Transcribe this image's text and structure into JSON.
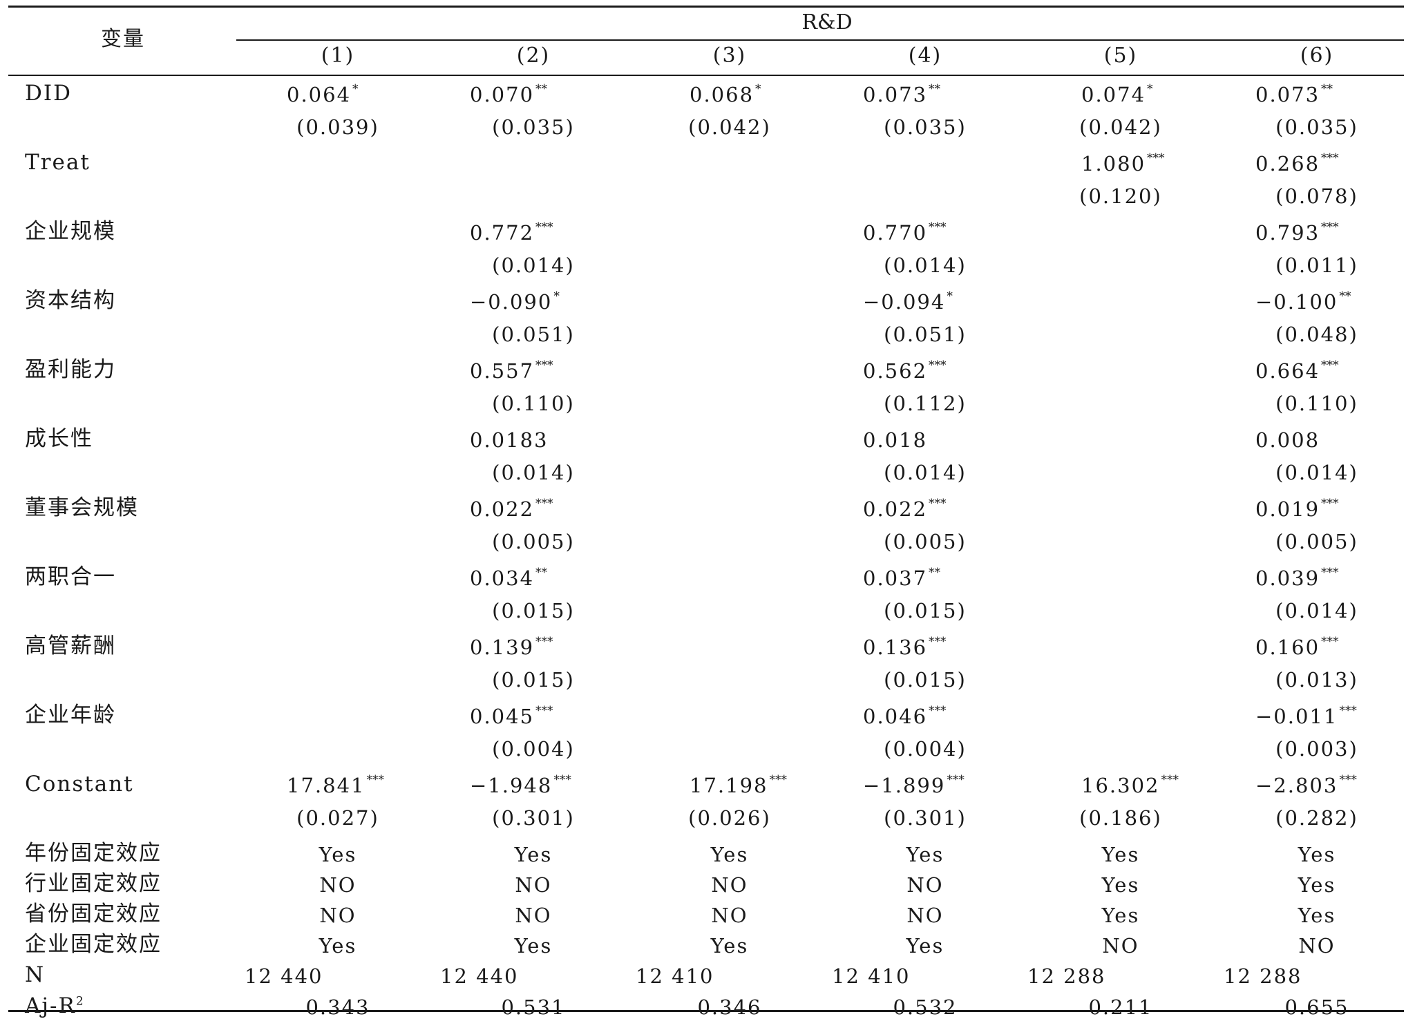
{
  "header": {
    "var_label": "变量",
    "group_label": "R&D",
    "columns": [
      "(1)",
      "(2)",
      "(3)",
      "(4)",
      "(5)",
      "(6)"
    ]
  },
  "rows": [
    {
      "label": "DID",
      "coef": [
        "0.064",
        "0.070",
        "0.068",
        "0.073",
        "0.074",
        "0.073"
      ],
      "stars": [
        "*",
        "**",
        "*",
        "**",
        "*",
        "**"
      ],
      "se": [
        "(0.039)",
        "(0.035)",
        "(0.042)",
        "(0.035)",
        "(0.042)",
        "(0.035)"
      ]
    },
    {
      "label": "Treat",
      "coef": [
        "",
        "",
        "",
        "",
        "1.080",
        "0.268"
      ],
      "stars": [
        "",
        "",
        "",
        "",
        "***",
        "***"
      ],
      "se": [
        "",
        "",
        "",
        "",
        "(0.120)",
        "(0.078)"
      ]
    },
    {
      "label": "企业规模",
      "coef": [
        "",
        "0.772",
        "",
        "0.770",
        "",
        "0.793"
      ],
      "stars": [
        "",
        "***",
        "",
        "***",
        "",
        "***"
      ],
      "se": [
        "",
        "(0.014)",
        "",
        "(0.014)",
        "",
        "(0.011)"
      ]
    },
    {
      "label": "资本结构",
      "coef": [
        "",
        "−0.090",
        "",
        "−0.094",
        "",
        "−0.100"
      ],
      "stars": [
        "",
        "*",
        "",
        "*",
        "",
        "**"
      ],
      "se": [
        "",
        "(0.051)",
        "",
        "(0.051)",
        "",
        "(0.048)"
      ]
    },
    {
      "label": "盈利能力",
      "coef": [
        "",
        "0.557",
        "",
        "0.562",
        "",
        "0.664"
      ],
      "stars": [
        "",
        "***",
        "",
        "***",
        "",
        "***"
      ],
      "se": [
        "",
        "(0.110)",
        "",
        "(0.112)",
        "",
        "(0.110)"
      ]
    },
    {
      "label": "成长性",
      "coef": [
        "",
        "0.0183",
        "",
        "0.018",
        "",
        "0.008"
      ],
      "stars": [
        "",
        "",
        "",
        "",
        "",
        ""
      ],
      "se": [
        "",
        "(0.014)",
        "",
        "(0.014)",
        "",
        "(0.014)"
      ]
    },
    {
      "label": "董事会规模",
      "coef": [
        "",
        "0.022",
        "",
        "0.022",
        "",
        "0.019"
      ],
      "stars": [
        "",
        "***",
        "",
        "***",
        "",
        "***"
      ],
      "se": [
        "",
        "(0.005)",
        "",
        "(0.005)",
        "",
        "(0.005)"
      ]
    },
    {
      "label": "两职合一",
      "coef": [
        "",
        "0.034",
        "",
        "0.037",
        "",
        "0.039"
      ],
      "stars": [
        "",
        "**",
        "",
        "**",
        "",
        "***"
      ],
      "se": [
        "",
        "(0.015)",
        "",
        "(0.015)",
        "",
        "(0.014)"
      ]
    },
    {
      "label": "高管薪酬",
      "coef": [
        "",
        "0.139",
        "",
        "0.136",
        "",
        "0.160"
      ],
      "stars": [
        "",
        "***",
        "",
        "***",
        "",
        "***"
      ],
      "se": [
        "",
        "(0.015)",
        "",
        "(0.015)",
        "",
        "(0.013)"
      ]
    },
    {
      "label": "企业年龄",
      "coef": [
        "",
        "0.045",
        "",
        "0.046",
        "",
        "−0.011"
      ],
      "stars": [
        "",
        "***",
        "",
        "***",
        "",
        "***"
      ],
      "se": [
        "",
        "(0.004)",
        "",
        "(0.004)",
        "",
        "(0.003)"
      ]
    },
    {
      "label": "Constant",
      "coef": [
        "17.841",
        "−1.948",
        "17.198",
        "−1.899",
        "16.302",
        "−2.803"
      ],
      "stars": [
        "***",
        "***",
        "***",
        "***",
        "***",
        "***"
      ],
      "se": [
        "(0.027)",
        "(0.301)",
        "(0.026)",
        "(0.301)",
        "(0.186)",
        "(0.282)"
      ]
    }
  ],
  "fixed_effects": [
    {
      "label": "年份固定效应",
      "values": [
        "Yes",
        "Yes",
        "Yes",
        "Yes",
        "Yes",
        "Yes"
      ]
    },
    {
      "label": "行业固定效应",
      "values": [
        "NO",
        "NO",
        "NO",
        "NO",
        "Yes",
        "Yes"
      ]
    },
    {
      "label": "省份固定效应",
      "values": [
        "NO",
        "NO",
        "NO",
        "NO",
        "Yes",
        "Yes"
      ]
    },
    {
      "label": "企业固定效应",
      "values": [
        "Yes",
        "Yes",
        "Yes",
        "Yes",
        "NO",
        "NO"
      ]
    }
  ],
  "n_row": {
    "label": "N",
    "values": [
      "12 440",
      "12 440",
      "12 410",
      "12 410",
      "12 288",
      "12 288"
    ]
  },
  "r2_row": {
    "label": "Aj-R",
    "label_sup": "2",
    "values": [
      "0.343",
      "0.531",
      "0.346",
      "0.532",
      "0.211",
      "0.655"
    ]
  }
}
